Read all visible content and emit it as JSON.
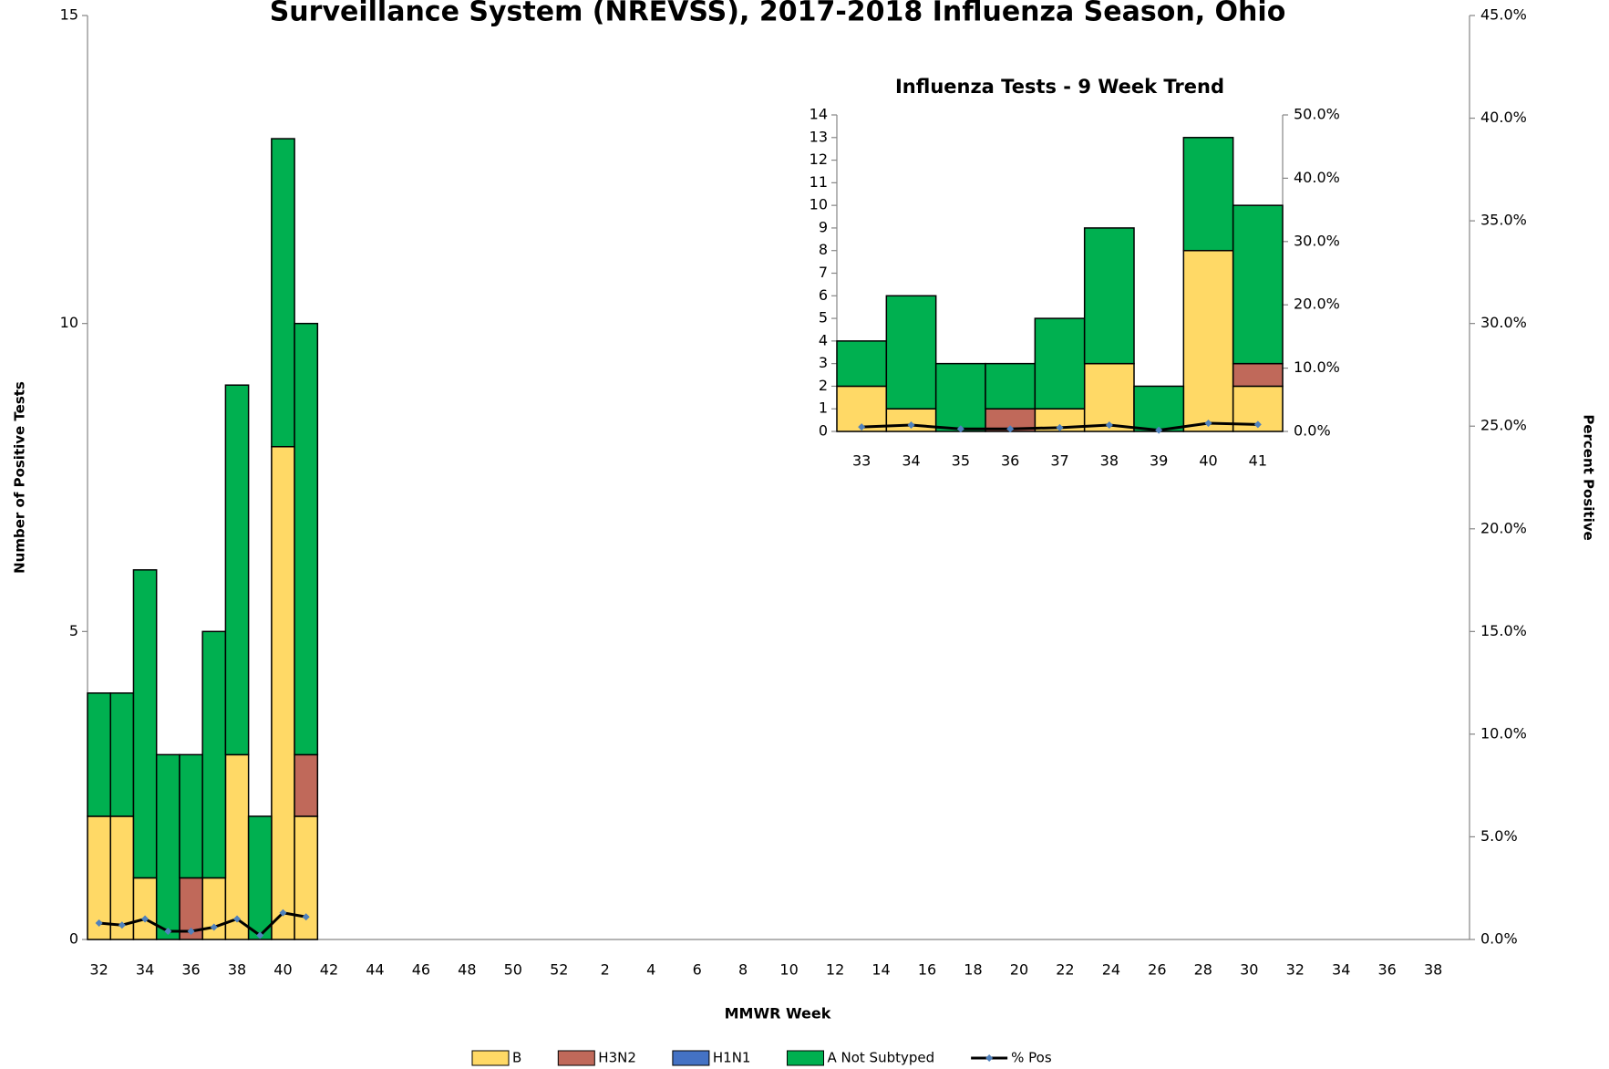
{
  "chart_data": [
    {
      "type": "bar",
      "stacked": true,
      "title": "Surveillance System (NREVSS), 2017-2018 Influenza Season, Ohio",
      "x_label": "MMWR Week",
      "y_label": "Number of Positive Tests",
      "y2_label": "Percent Positive",
      "categories": [
        "32",
        null,
        "34",
        null,
        "36",
        null,
        "38",
        null,
        "40",
        null,
        "42",
        null,
        "44",
        null,
        "46",
        null,
        "48",
        null,
        "50",
        null,
        "52",
        null,
        "2",
        null,
        "4",
        null,
        "6",
        null,
        "8",
        null,
        "10",
        null,
        "12",
        null,
        "14",
        null,
        "16",
        null,
        "18",
        null,
        "20",
        null,
        "22",
        null,
        "24",
        null,
        "26",
        null,
        "28",
        null,
        "30",
        null,
        "32",
        null,
        "34",
        null,
        "36",
        null,
        "38",
        null
      ],
      "ylim": [
        0,
        15
      ],
      "yticks": [
        0,
        5,
        10,
        15
      ],
      "y2lim": [
        0,
        45
      ],
      "y2ticks": [
        {
          "value": 0,
          "label": "0.0%"
        },
        {
          "value": 5,
          "label": "5.0%"
        },
        {
          "value": 10,
          "label": "10.0%"
        },
        {
          "value": 15,
          "label": "15.0%"
        },
        {
          "value": 20,
          "label": "20.0%"
        },
        {
          "value": 25,
          "label": "25.0%"
        },
        {
          "value": 30,
          "label": "30.0%"
        },
        {
          "value": 35,
          "label": "35.0%"
        },
        {
          "value": 40,
          "label": "40.0%"
        },
        {
          "value": 45,
          "label": "45.0%"
        }
      ],
      "legend": "bottom",
      "series": [
        {
          "name": "B",
          "color": "#ffd966",
          "values": [
            2,
            2,
            1,
            0,
            0,
            1,
            3,
            0,
            8,
            2,
            null,
            null,
            null,
            null,
            null,
            null,
            null,
            null,
            null,
            null,
            null,
            null,
            null,
            null,
            null,
            null,
            null,
            null,
            null,
            null,
            null,
            null,
            null,
            null,
            null,
            null,
            null,
            null,
            null,
            null,
            null,
            null,
            null,
            null,
            null,
            null,
            null,
            null,
            null,
            null,
            null,
            null,
            null,
            null,
            null,
            null,
            null,
            null,
            null,
            null
          ]
        },
        {
          "name": "H3N2",
          "color": "#c0695a",
          "values": [
            0,
            0,
            0,
            0,
            1,
            0,
            0,
            0,
            0,
            1,
            null,
            null,
            null,
            null,
            null,
            null,
            null,
            null,
            null,
            null,
            null,
            null,
            null,
            null,
            null,
            null,
            null,
            null,
            null,
            null,
            null,
            null,
            null,
            null,
            null,
            null,
            null,
            null,
            null,
            null,
            null,
            null,
            null,
            null,
            null,
            null,
            null,
            null,
            null,
            null,
            null,
            null,
            null,
            null,
            null,
            null,
            null,
            null,
            null,
            null
          ]
        },
        {
          "name": "H1N1",
          "color": "#4472c4",
          "values": [
            0,
            0,
            0,
            0,
            0,
            0,
            0,
            0,
            0,
            0,
            null,
            null,
            null,
            null,
            null,
            null,
            null,
            null,
            null,
            null,
            null,
            null,
            null,
            null,
            null,
            null,
            null,
            null,
            null,
            null,
            null,
            null,
            null,
            null,
            null,
            null,
            null,
            null,
            null,
            null,
            null,
            null,
            null,
            null,
            null,
            null,
            null,
            null,
            null,
            null,
            null,
            null,
            null,
            null,
            null,
            null,
            null,
            null,
            null,
            null
          ]
        },
        {
          "name": "A Not Subtyped",
          "color": "#00b050",
          "values": [
            2,
            2,
            5,
            3,
            2,
            4,
            6,
            2,
            5,
            7,
            null,
            null,
            null,
            null,
            null,
            null,
            null,
            null,
            null,
            null,
            null,
            null,
            null,
            null,
            null,
            null,
            null,
            null,
            null,
            null,
            null,
            null,
            null,
            null,
            null,
            null,
            null,
            null,
            null,
            null,
            null,
            null,
            null,
            null,
            null,
            null,
            null,
            null,
            null,
            null,
            null,
            null,
            null,
            null,
            null,
            null,
            null,
            null,
            null,
            null
          ]
        },
        {
          "name": "% Pos",
          "color": "#000000",
          "marker_color": "#4f81bd",
          "axis": "y2",
          "kind": "line",
          "values": [
            0.8,
            0.7,
            1.0,
            0.4,
            0.4,
            0.6,
            1.0,
            0.2,
            1.3,
            1.1,
            null,
            null,
            null,
            null,
            null,
            null,
            null,
            null,
            null,
            null,
            null,
            null,
            null,
            null,
            null,
            null,
            null,
            null,
            null,
            null,
            null,
            null,
            null,
            null,
            null,
            null,
            null,
            null,
            null,
            null,
            null,
            null,
            null,
            null,
            null,
            null,
            null,
            null,
            null,
            null,
            null,
            null,
            null,
            null,
            null,
            null,
            null,
            null,
            null,
            null
          ]
        }
      ]
    },
    {
      "type": "bar",
      "stacked": true,
      "title": "Influenza Tests - 9 Week Trend",
      "categories": [
        "33",
        "34",
        "35",
        "36",
        "37",
        "38",
        "39",
        "40",
        "41"
      ],
      "ylim": [
        0,
        14
      ],
      "yticks": [
        0,
        1,
        2,
        3,
        4,
        5,
        6,
        7,
        8,
        9,
        10,
        11,
        12,
        13,
        14
      ],
      "y2lim": [
        0,
        50
      ],
      "y2ticks": [
        {
          "value": 0,
          "label": "0.0%"
        },
        {
          "value": 10,
          "label": "10.0%"
        },
        {
          "value": 20,
          "label": "20.0%"
        },
        {
          "value": 30,
          "label": "30.0%"
        },
        {
          "value": 40,
          "label": "40.0%"
        },
        {
          "value": 50,
          "label": "50.0%"
        }
      ],
      "series": [
        {
          "name": "B",
          "color": "#ffd966",
          "values": [
            2,
            1,
            0,
            0,
            1,
            3,
            0,
            8,
            2
          ]
        },
        {
          "name": "H3N2",
          "color": "#c0695a",
          "values": [
            0,
            0,
            0,
            1,
            0,
            0,
            0,
            0,
            1
          ]
        },
        {
          "name": "H1N1",
          "color": "#4472c4",
          "values": [
            0,
            0,
            0,
            0,
            0,
            0,
            0,
            0,
            0
          ]
        },
        {
          "name": "A Not Subtyped",
          "color": "#00b050",
          "values": [
            2,
            5,
            3,
            2,
            4,
            6,
            2,
            5,
            7
          ]
        },
        {
          "name": "% Pos",
          "color": "#000000",
          "marker_color": "#4f81bd",
          "axis": "y2",
          "kind": "line",
          "values": [
            0.7,
            1.0,
            0.4,
            0.4,
            0.6,
            1.0,
            0.2,
            1.3,
            1.1
          ]
        }
      ]
    }
  ]
}
